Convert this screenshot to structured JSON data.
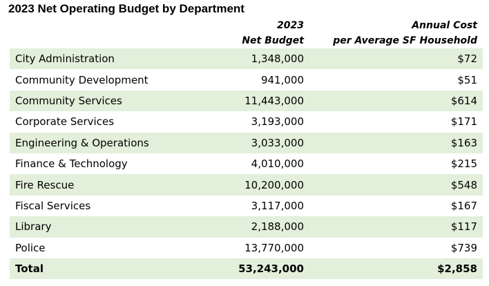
{
  "title": "2023 Net Operating Budget by Department",
  "headers": {
    "department": "",
    "net_budget": [
      "2023",
      "Net Budget"
    ],
    "annual_cost": [
      "Annual Cost",
      "per Average SF Household"
    ]
  },
  "colors": {
    "shaded_row": "#e2efda",
    "plain_row": "#ffffff",
    "text": "#000000"
  },
  "rows": [
    {
      "department": "City Administration",
      "net_budget": "1,348,000",
      "annual_cost": "$72"
    },
    {
      "department": "Community Development",
      "net_budget": "941,000",
      "annual_cost": "$51"
    },
    {
      "department": "Community Services",
      "net_budget": "11,443,000",
      "annual_cost": "$614"
    },
    {
      "department": "Corporate Services",
      "net_budget": "3,193,000",
      "annual_cost": "$171"
    },
    {
      "department": "Engineering & Operations",
      "net_budget": "3,033,000",
      "annual_cost": "$163"
    },
    {
      "department": "Finance & Technology",
      "net_budget": "4,010,000",
      "annual_cost": "$215"
    },
    {
      "department": "Fire Rescue",
      "net_budget": "10,200,000",
      "annual_cost": "$548"
    },
    {
      "department": "Fiscal Services",
      "net_budget": "3,117,000",
      "annual_cost": "$167"
    },
    {
      "department": "Library",
      "net_budget": "2,188,000",
      "annual_cost": "$117"
    },
    {
      "department": "Police",
      "net_budget": "13,770,000",
      "annual_cost": "$739"
    }
  ],
  "total": {
    "department": "Total",
    "net_budget": "53,243,000",
    "annual_cost": "$2,858"
  }
}
